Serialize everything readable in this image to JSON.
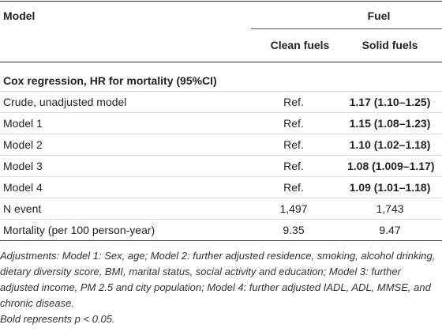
{
  "header": {
    "model": "Model",
    "fuel": "Fuel",
    "clean": "Clean fuels",
    "solid": "Solid fuels"
  },
  "section": "Cox regression, HR for mortality (95%CI)",
  "rows": [
    {
      "label": "Crude, unadjusted model",
      "clean": "Ref.",
      "solid": "1.17 (1.10–1.25)",
      "bold": true
    },
    {
      "label": "Model 1",
      "clean": "Ref.",
      "solid": "1.15 (1.08–1.23)",
      "bold": true
    },
    {
      "label": "Model 2",
      "clean": "Ref.",
      "solid": "1.10 (1.02–1.18)",
      "bold": true
    },
    {
      "label": "Model 3",
      "clean": "Ref.",
      "solid": "1.08 (1.009–1.17)",
      "bold": true
    },
    {
      "label": "Model 4",
      "clean": "Ref.",
      "solid": "1.09 (1.01–1.18)",
      "bold": true
    },
    {
      "label": "N event",
      "clean": "1,497",
      "solid": "1,743",
      "bold": false
    },
    {
      "label": "Mortality (per 100 person-year)",
      "clean": "9.35",
      "solid": "9.47",
      "bold": false
    }
  ],
  "footnote": {
    "adjustments": "Adjustments: Model 1: Sex, age; Model 2: further adjusted residence, smoking, alcohol drinking, dietary diversity score, BMI, marital status, social activity and education; Model 3: further adjusted income, PM 2.5 and city population; Model 4: further adjusted IADL, ADL, MMSE, and chronic disease.",
    "note": "Bold represents p < 0.05."
  }
}
